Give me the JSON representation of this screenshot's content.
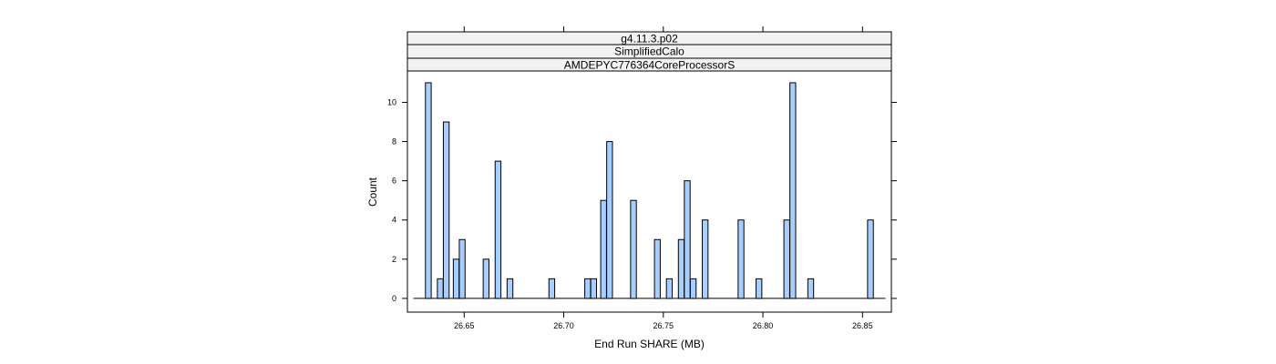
{
  "chart_data": {
    "type": "bar",
    "strips": [
      "g4.11.3.p02",
      "SimplifiedCalo",
      "AMDEPYC776364CoreProcessorS"
    ],
    "xlabel": "End Run SHARE (MB)",
    "ylabel": "Count",
    "xlim": [
      26.6215,
      26.8645
    ],
    "ylim": [
      -0.7,
      11.6
    ],
    "x_ticks": [
      "26.65",
      "26.70",
      "26.75",
      "26.80",
      "26.85"
    ],
    "y_ticks": [
      "0",
      "2",
      "4",
      "6",
      "8",
      "10"
    ],
    "baseline_range": [
      26.6245,
      26.8615
    ],
    "bin_width": 0.0029,
    "bins": [
      {
        "x": 26.632,
        "count": 11
      },
      {
        "x": 26.638,
        "count": 1
      },
      {
        "x": 26.641,
        "count": 9
      },
      {
        "x": 26.646,
        "count": 2
      },
      {
        "x": 26.649,
        "count": 3
      },
      {
        "x": 26.661,
        "count": 2
      },
      {
        "x": 26.667,
        "count": 7
      },
      {
        "x": 26.673,
        "count": 1
      },
      {
        "x": 26.694,
        "count": 1
      },
      {
        "x": 26.712,
        "count": 1
      },
      {
        "x": 26.715,
        "count": 1
      },
      {
        "x": 26.72,
        "count": 5
      },
      {
        "x": 26.723,
        "count": 8
      },
      {
        "x": 26.735,
        "count": 5
      },
      {
        "x": 26.747,
        "count": 3
      },
      {
        "x": 26.753,
        "count": 1
      },
      {
        "x": 26.759,
        "count": 3
      },
      {
        "x": 26.762,
        "count": 6
      },
      {
        "x": 26.765,
        "count": 1
      },
      {
        "x": 26.771,
        "count": 4
      },
      {
        "x": 26.789,
        "count": 4
      },
      {
        "x": 26.798,
        "count": 1
      },
      {
        "x": 26.812,
        "count": 4
      },
      {
        "x": 26.815,
        "count": 11
      },
      {
        "x": 26.824,
        "count": 1
      },
      {
        "x": 26.854,
        "count": 4
      }
    ],
    "colors": {
      "bar_fill": "#a6cfff",
      "bar_stroke": "#000000",
      "strip_fill": "#f2f2f2",
      "frame": "#000000"
    }
  }
}
